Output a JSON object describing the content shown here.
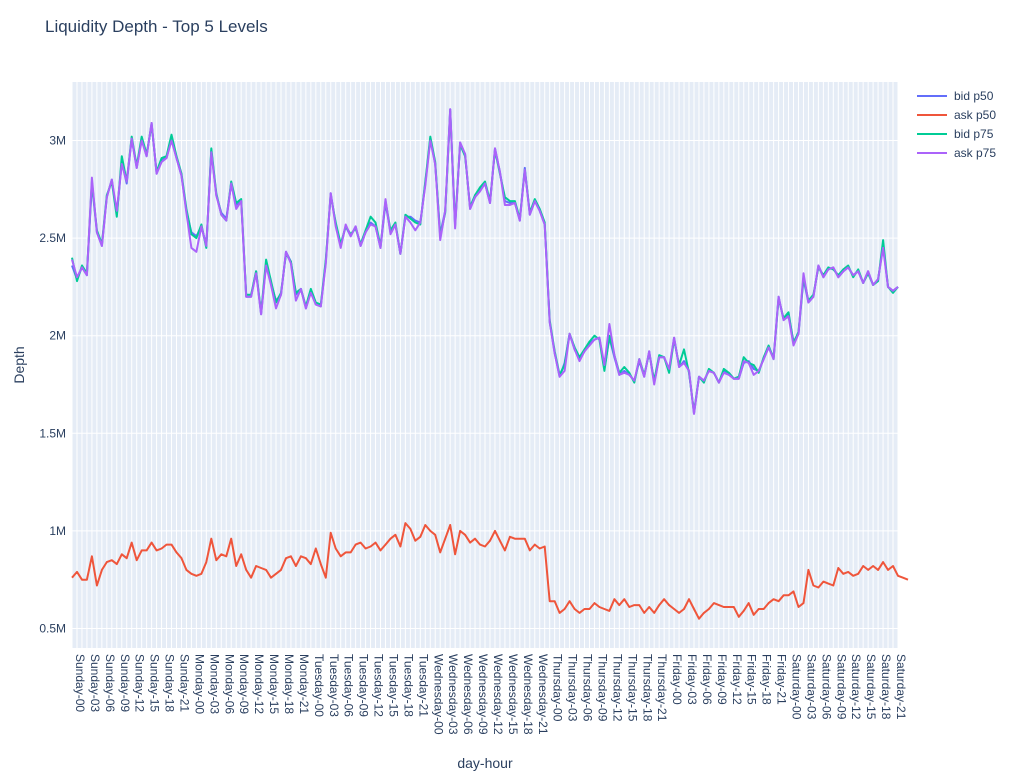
{
  "chart_data": {
    "type": "line",
    "title": "Liquidity Depth - Top 5 Levels",
    "xlabel": "day-hour",
    "ylabel": "Depth",
    "ylim": [
      400000,
      3300000
    ],
    "grid": true,
    "legend_position": "top-right",
    "yticks": [
      {
        "value": 500000,
        "label": "0.5M"
      },
      {
        "value": 1000000,
        "label": "1M"
      },
      {
        "value": 1500000,
        "label": "1.5M"
      },
      {
        "value": 2000000,
        "label": "2M"
      },
      {
        "value": 2500000,
        "label": "2.5M"
      },
      {
        "value": 3000000,
        "label": "3M"
      }
    ],
    "days": [
      "Sunday",
      "Monday",
      "Tuesday",
      "Wednesday",
      "Thursday",
      "Friday",
      "Saturday"
    ],
    "tick_hours": [
      0,
      3,
      6,
      9,
      12,
      15,
      18,
      21
    ],
    "series": [
      {
        "name": "bid p50",
        "color": "#636efa",
        "values": [
          2360000,
          2290000,
          2350000,
          2310000,
          2780000,
          2530000,
          2460000,
          2710000,
          2800000,
          2620000,
          2890000,
          2780000,
          3010000,
          2860000,
          3010000,
          2920000,
          3090000,
          2830000,
          2900000,
          2910000,
          3010000,
          2910000,
          2820000,
          2640000,
          2530000,
          2510000,
          2560000,
          2460000,
          2950000,
          2720000,
          2630000,
          2600000,
          2780000,
          2670000,
          2690000,
          2200000,
          2200000,
          2330000,
          2110000,
          2370000,
          2270000,
          2180000,
          2210000,
          2430000,
          2380000,
          2210000,
          2240000,
          2140000,
          2230000,
          2160000,
          2150000,
          2380000,
          2730000,
          2570000,
          2460000,
          2560000,
          2510000,
          2560000,
          2460000,
          2530000,
          2580000,
          2560000,
          2450000,
          2680000,
          2530000,
          2570000,
          2420000,
          2610000,
          2610000,
          2590000,
          2580000,
          2780000,
          3010000,
          2880000,
          2520000,
          2640000,
          3160000,
          2560000,
          2990000,
          2930000,
          2650000,
          2710000,
          2750000,
          2780000,
          2680000,
          2960000,
          2840000,
          2690000,
          2680000,
          2680000,
          2590000,
          2860000,
          2620000,
          2690000,
          2640000,
          2570000,
          2070000,
          1910000,
          1790000,
          1860000,
          2010000,
          1930000,
          1880000,
          1920000,
          1960000,
          1980000,
          1990000,
          1830000,
          1990000,
          1890000,
          1800000,
          1820000,
          1800000,
          1770000,
          1870000,
          1790000,
          1920000,
          1760000,
          1890000,
          1890000,
          1820000,
          1990000,
          1840000,
          1870000,
          1820000,
          1600000,
          1790000,
          1770000,
          1820000,
          1810000,
          1760000,
          1820000,
          1810000,
          1780000,
          1780000,
          1860000,
          1870000,
          1830000,
          1820000,
          1880000,
          1940000,
          1890000,
          2200000,
          2080000,
          2110000,
          1970000,
          2010000,
          2290000,
          2170000,
          2200000,
          2360000,
          2300000,
          2340000,
          2350000,
          2300000,
          2330000,
          2350000,
          2310000,
          2330000,
          2270000,
          2330000,
          2260000,
          2290000,
          2460000,
          2250000,
          2230000,
          2250000
        ]
      },
      {
        "name": "ask p50",
        "color": "#ef553b",
        "values": [
          760000,
          790000,
          750000,
          750000,
          870000,
          720000,
          800000,
          840000,
          850000,
          830000,
          880000,
          860000,
          940000,
          850000,
          900000,
          900000,
          940000,
          900000,
          910000,
          930000,
          930000,
          890000,
          860000,
          800000,
          780000,
          770000,
          780000,
          840000,
          960000,
          850000,
          880000,
          870000,
          960000,
          820000,
          880000,
          800000,
          760000,
          820000,
          810000,
          800000,
          760000,
          780000,
          800000,
          860000,
          870000,
          820000,
          870000,
          860000,
          830000,
          910000,
          830000,
          760000,
          990000,
          910000,
          870000,
          890000,
          890000,
          930000,
          940000,
          910000,
          920000,
          940000,
          900000,
          930000,
          960000,
          980000,
          920000,
          1040000,
          1010000,
          950000,
          970000,
          1030000,
          1000000,
          980000,
          890000,
          960000,
          1030000,
          880000,
          1000000,
          980000,
          940000,
          960000,
          930000,
          920000,
          950000,
          1000000,
          950000,
          900000,
          970000,
          960000,
          960000,
          960000,
          900000,
          930000,
          910000,
          920000,
          640000,
          640000,
          580000,
          600000,
          640000,
          600000,
          580000,
          600000,
          600000,
          630000,
          610000,
          600000,
          590000,
          650000,
          620000,
          650000,
          610000,
          620000,
          620000,
          580000,
          610000,
          580000,
          620000,
          650000,
          620000,
          600000,
          580000,
          600000,
          650000,
          600000,
          550000,
          580000,
          600000,
          630000,
          620000,
          610000,
          610000,
          610000,
          560000,
          590000,
          630000,
          570000,
          600000,
          600000,
          630000,
          650000,
          640000,
          670000,
          670000,
          690000,
          610000,
          630000,
          800000,
          720000,
          710000,
          740000,
          730000,
          720000,
          810000,
          780000,
          790000,
          770000,
          780000,
          820000,
          800000,
          820000,
          800000,
          840000,
          800000,
          820000,
          770000,
          760000,
          750000
        ]
      },
      {
        "name": "bid p75",
        "color": "#00cc96",
        "values": [
          2400000,
          2280000,
          2360000,
          2320000,
          2790000,
          2540000,
          2470000,
          2720000,
          2790000,
          2610000,
          2920000,
          2790000,
          3020000,
          2870000,
          3020000,
          2930000,
          3080000,
          2840000,
          2910000,
          2920000,
          3030000,
          2920000,
          2830000,
          2650000,
          2520000,
          2500000,
          2570000,
          2450000,
          2960000,
          2730000,
          2620000,
          2590000,
          2790000,
          2680000,
          2700000,
          2210000,
          2210000,
          2330000,
          2120000,
          2390000,
          2280000,
          2170000,
          2220000,
          2420000,
          2380000,
          2220000,
          2240000,
          2150000,
          2240000,
          2170000,
          2160000,
          2390000,
          2720000,
          2580000,
          2470000,
          2560000,
          2520000,
          2550000,
          2470000,
          2540000,
          2610000,
          2580000,
          2460000,
          2690000,
          2540000,
          2580000,
          2420000,
          2620000,
          2600000,
          2580000,
          2570000,
          2790000,
          3020000,
          2890000,
          2510000,
          2630000,
          3150000,
          2570000,
          2980000,
          2920000,
          2660000,
          2720000,
          2760000,
          2790000,
          2690000,
          2950000,
          2830000,
          2710000,
          2690000,
          2690000,
          2600000,
          2850000,
          2630000,
          2700000,
          2650000,
          2580000,
          2080000,
          1920000,
          1800000,
          1850000,
          2010000,
          1940000,
          1890000,
          1930000,
          1970000,
          2000000,
          1980000,
          1820000,
          2000000,
          1900000,
          1810000,
          1840000,
          1810000,
          1760000,
          1880000,
          1800000,
          1910000,
          1770000,
          1900000,
          1890000,
          1810000,
          1980000,
          1850000,
          1930000,
          1810000,
          1610000,
          1790000,
          1760000,
          1830000,
          1810000,
          1760000,
          1830000,
          1810000,
          1780000,
          1790000,
          1890000,
          1860000,
          1850000,
          1810000,
          1890000,
          1950000,
          1880000,
          2190000,
          2090000,
          2120000,
          1960000,
          2020000,
          2300000,
          2180000,
          2210000,
          2350000,
          2310000,
          2350000,
          2340000,
          2310000,
          2340000,
          2360000,
          2300000,
          2340000,
          2270000,
          2320000,
          2260000,
          2280000,
          2490000,
          2250000,
          2220000,
          2250000
        ]
      },
      {
        "name": "ask p75",
        "color": "#ab63fa",
        "values": [
          2390000,
          2300000,
          2350000,
          2310000,
          2810000,
          2530000,
          2460000,
          2710000,
          2800000,
          2640000,
          2880000,
          2790000,
          3010000,
          2860000,
          3000000,
          2920000,
          3090000,
          2830000,
          2890000,
          2910000,
          3000000,
          2910000,
          2820000,
          2630000,
          2450000,
          2430000,
          2560000,
          2460000,
          2940000,
          2720000,
          2620000,
          2590000,
          2780000,
          2650000,
          2690000,
          2200000,
          2200000,
          2320000,
          2110000,
          2360000,
          2260000,
          2140000,
          2210000,
          2430000,
          2370000,
          2180000,
          2240000,
          2140000,
          2220000,
          2160000,
          2150000,
          2370000,
          2730000,
          2560000,
          2450000,
          2570000,
          2510000,
          2560000,
          2460000,
          2530000,
          2570000,
          2560000,
          2450000,
          2700000,
          2520000,
          2570000,
          2420000,
          2610000,
          2580000,
          2540000,
          2580000,
          2770000,
          3000000,
          2880000,
          2490000,
          2640000,
          3160000,
          2550000,
          2990000,
          2930000,
          2650000,
          2710000,
          2740000,
          2780000,
          2680000,
          2960000,
          2840000,
          2670000,
          2670000,
          2680000,
          2590000,
          2850000,
          2620000,
          2690000,
          2640000,
          2570000,
          2070000,
          1910000,
          1790000,
          1820000,
          2010000,
          1930000,
          1870000,
          1920000,
          1950000,
          1980000,
          1990000,
          1850000,
          2060000,
          1900000,
          1800000,
          1810000,
          1800000,
          1770000,
          1880000,
          1790000,
          1920000,
          1750000,
          1890000,
          1890000,
          1830000,
          1990000,
          1840000,
          1860000,
          1820000,
          1600000,
          1790000,
          1770000,
          1820000,
          1810000,
          1760000,
          1810000,
          1800000,
          1780000,
          1780000,
          1870000,
          1860000,
          1800000,
          1820000,
          1880000,
          1940000,
          1880000,
          2200000,
          2080000,
          2100000,
          1950000,
          2010000,
          2320000,
          2170000,
          2200000,
          2360000,
          2300000,
          2340000,
          2350000,
          2300000,
          2330000,
          2350000,
          2310000,
          2330000,
          2270000,
          2330000,
          2260000,
          2290000,
          2450000,
          2250000,
          2230000,
          2250000
        ]
      }
    ]
  }
}
